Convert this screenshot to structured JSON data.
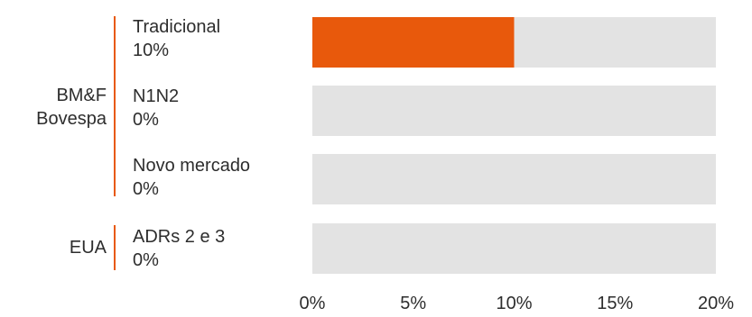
{
  "chart_data": {
    "type": "bar",
    "orientation": "horizontal",
    "groups": [
      {
        "label_lines": [
          "BM&F",
          "Bovespa"
        ],
        "categories": [
          0,
          1,
          2
        ]
      },
      {
        "label_lines": [
          "EUA"
        ],
        "categories": [
          3
        ]
      }
    ],
    "categories": [
      "Tradicional",
      "N1N2",
      "Novo mercado",
      "ADRs 2 e 3"
    ],
    "value_labels": [
      "10%",
      "0%",
      "0%",
      "0%"
    ],
    "values": [
      10,
      0,
      0,
      0
    ],
    "xlim": [
      0,
      20
    ],
    "xticks": [
      0,
      5,
      10,
      15,
      20
    ],
    "xtick_labels": [
      "0%",
      "5%",
      "10%",
      "15%",
      "20%"
    ],
    "title": "",
    "xlabel": "",
    "ylabel": "",
    "colors": {
      "bar": "#e8590c",
      "track": "#e3e3e3",
      "group_line": "#e8590c",
      "text": "#2d2d2d"
    }
  }
}
